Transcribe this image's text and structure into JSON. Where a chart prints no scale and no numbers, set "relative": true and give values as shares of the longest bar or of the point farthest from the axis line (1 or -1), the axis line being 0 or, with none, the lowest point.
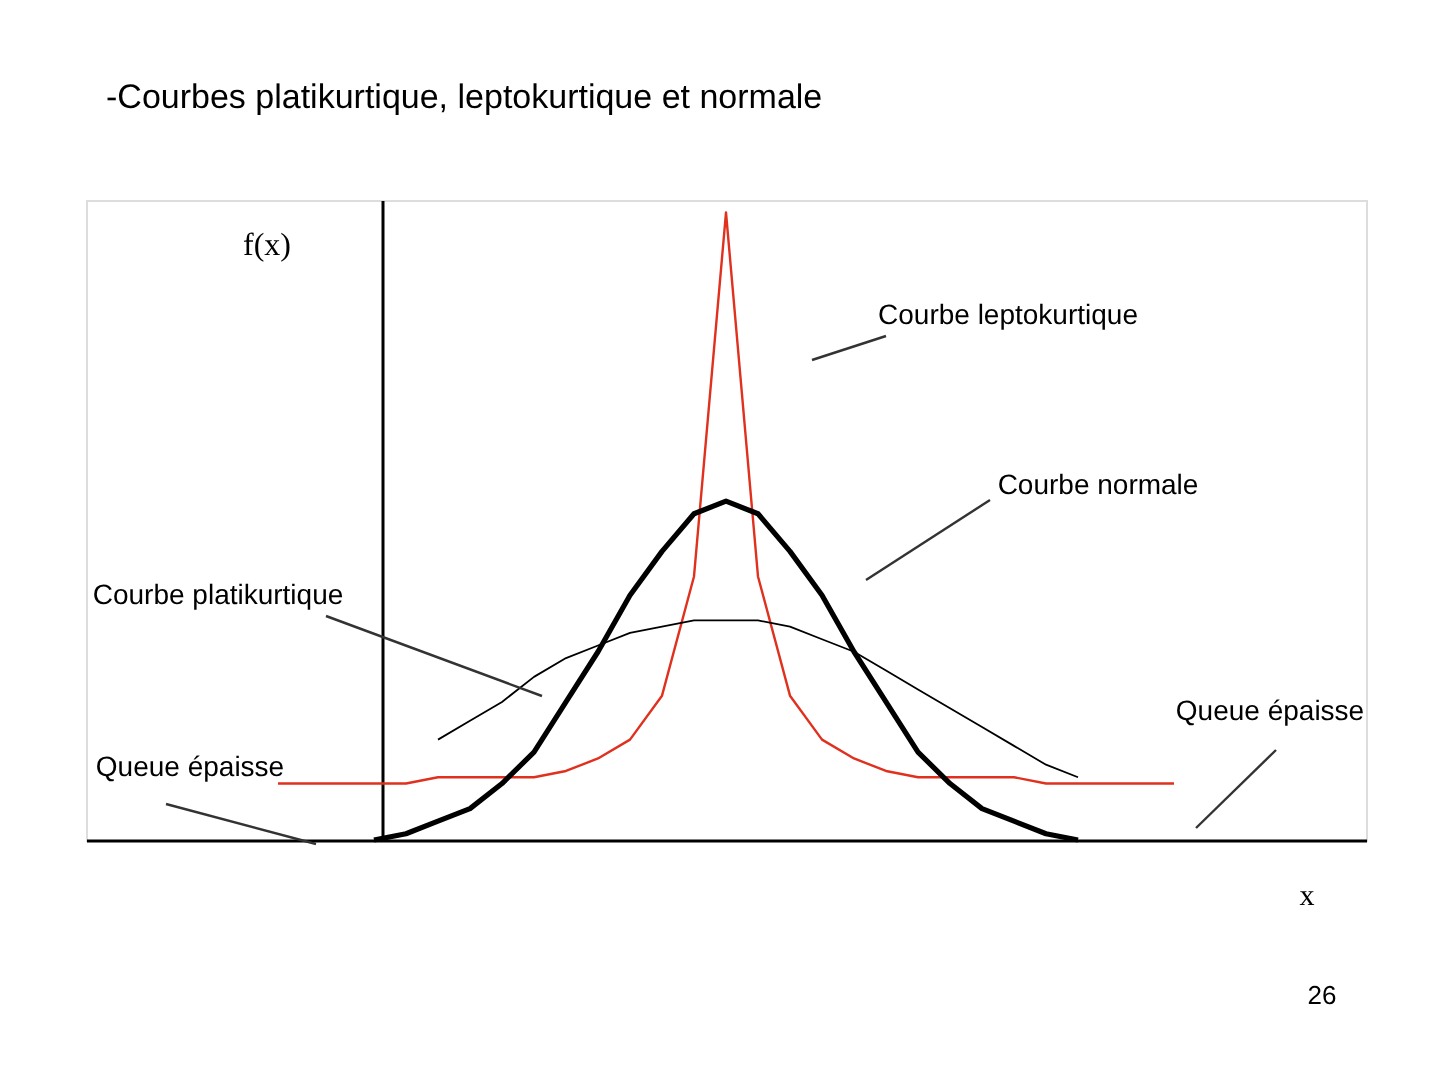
{
  "chart_data": {
    "type": "line",
    "title": "-Courbes platikurtique, leptokurtique et normale",
    "ylabel": "f(x)",
    "xlabel": "x",
    "relative": true,
    "tick_labels": false,
    "categories": [
      null,
      null,
      null,
      null,
      null,
      null,
      null,
      null,
      null,
      null,
      null,
      null,
      null,
      null,
      null,
      null,
      null,
      null,
      null,
      null,
      null,
      null,
      null,
      null,
      null,
      null,
      null,
      null,
      null,
      null,
      null,
      null,
      null,
      null,
      null,
      null,
      null,
      null,
      null,
      null,
      null
    ],
    "series": [
      {
        "color": "#e0301e",
        "values": [
          null,
          null,
          null,
          null,
          null,
          null,
          0.09,
          0.09,
          0.09,
          0.09,
          0.09,
          0.1,
          0.1,
          0.1,
          0.1,
          0.11,
          0.13,
          0.16,
          0.23,
          0.42,
          1.0,
          0.42,
          0.23,
          0.16,
          0.13,
          0.11,
          0.1,
          0.1,
          0.1,
          0.1,
          0.09,
          0.09,
          0.09,
          0.09,
          0.09,
          null,
          null,
          null,
          null,
          null,
          null
        ]
      },
      {
        "color": "#000000",
        "values": [
          null,
          null,
          null,
          null,
          null,
          null,
          null,
          null,
          null,
          0,
          0.01,
          0.03,
          0.05,
          0.09,
          0.14,
          0.22,
          0.3,
          0.39,
          0.46,
          0.52,
          0.54,
          0.52,
          0.46,
          0.39,
          0.3,
          0.22,
          0.14,
          0.09,
          0.05,
          0.03,
          0.01,
          0,
          null,
          null,
          null,
          null,
          null,
          null,
          null,
          null,
          null
        ]
      },
      {
        "color": "#000000",
        "values": [
          null,
          null,
          null,
          null,
          null,
          null,
          null,
          null,
          null,
          null,
          null,
          0.16,
          0.19,
          0.22,
          0.26,
          0.29,
          0.31,
          0.33,
          0.34,
          0.35,
          0.35,
          0.35,
          0.34,
          0.32,
          0.3,
          0.27,
          0.24,
          0.21,
          0.18,
          0.15,
          0.12,
          0.1,
          null,
          null,
          null,
          null,
          null,
          null,
          null,
          null,
          null
        ]
      }
    ],
    "annotations": [
      "Courbe leptokurtique",
      "Courbe normale",
      "Courbe platikurtique",
      "Queue épaisse",
      "Queue épaisse",
      "26"
    ]
  }
}
